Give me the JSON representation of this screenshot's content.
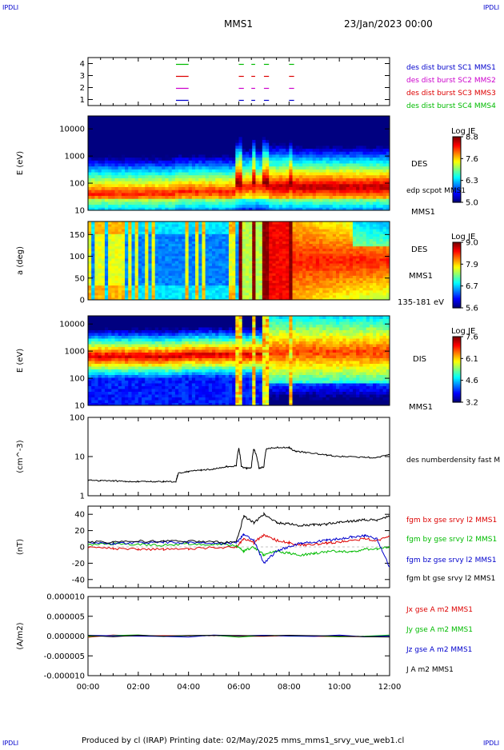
{
  "corner_label": "IPDLI",
  "header": {
    "title": "MMS1",
    "date": "23/Jan/2023 00:00"
  },
  "footer": "Produced by cl (IRAP)   Printing date: 02/May/2025   mms_mms1_srvy_vue_web1.cl",
  "colors": {
    "c1": "#0000cc",
    "c2": "#cc00cc",
    "c3": "#dd0000",
    "c4": "#00bb00",
    "black": "#000000"
  },
  "chart_data": [
    {
      "type": "scatter",
      "id": "availability",
      "ylim": [
        0.5,
        4.5
      ],
      "yticks": [
        "1",
        "2",
        "3",
        "4"
      ],
      "legend": [
        {
          "label": "des dist burst SC1 MMS1",
          "color": "#0000cc"
        },
        {
          "label": "des dist burst SC2 MMS2",
          "color": "#cc00cc"
        },
        {
          "label": "des dist burst SC3 MMS3",
          "color": "#dd0000"
        },
        {
          "label": "des dist burst SC4 MMS4",
          "color": "#00bb00"
        }
      ]
    },
    {
      "type": "heatmap",
      "id": "des-energy",
      "ylabel": "E (eV)",
      "yscale": "log",
      "ylim": [
        10,
        30000
      ],
      "yticks": [
        "10",
        "100",
        "1000",
        "10000"
      ],
      "right_labels": [
        "DES",
        "edp scpot MMS1",
        "MMS1"
      ],
      "colorbar": {
        "title": "Log JE",
        "ticks": [
          "8.8",
          "7.6",
          "6.3",
          "5.0"
        ],
        "range": [
          5.0,
          8.8
        ]
      }
    },
    {
      "type": "heatmap",
      "id": "des-pitch",
      "ylabel": "a (deg)",
      "ylim": [
        0,
        180
      ],
      "yticks": [
        "0",
        "50",
        "100",
        "150"
      ],
      "right_labels": [
        "DES",
        "MMS1",
        "135-181 eV"
      ],
      "colorbar": {
        "title": "Log JE",
        "ticks": [
          "9.0",
          "7.9",
          "6.7",
          "5.6"
        ],
        "range": [
          5.6,
          9.0
        ]
      }
    },
    {
      "type": "heatmap",
      "id": "dis-energy",
      "ylabel": "E (eV)",
      "yscale": "log",
      "ylim": [
        10,
        20000
      ],
      "yticks": [
        "10",
        "100",
        "1000",
        "10000"
      ],
      "right_labels": [
        "DIS",
        "MMS1"
      ],
      "colorbar": {
        "title": "Log JE",
        "ticks": [
          "7.6",
          "6.1",
          "4.6",
          "3.2"
        ],
        "range": [
          3.2,
          7.6
        ]
      }
    },
    {
      "type": "line",
      "id": "density",
      "ylabel": "(cm^-3)",
      "yscale": "log",
      "ylim": [
        1,
        100
      ],
      "yticks": [
        "1",
        "10",
        "100"
      ],
      "series": [
        {
          "name": "des numberdensity fast M",
          "color": "#000000",
          "x": [
            0,
            0.5,
            1,
            1.5,
            2,
            2.5,
            3,
            3.5,
            3.6,
            4,
            4.5,
            5,
            5.5,
            5.9,
            6.0,
            6.1,
            6.3,
            6.5,
            6.6,
            6.8,
            7.0,
            7.1,
            7.5,
            8.0,
            8.2,
            8.5,
            9,
            9.5,
            10,
            10.5,
            11,
            11.5,
            12
          ],
          "values": [
            2.5,
            2.4,
            2.4,
            2.3,
            2.3,
            2.3,
            2.3,
            2.3,
            3.8,
            4.2,
            4.5,
            4.8,
            5.5,
            5.8,
            16,
            5.5,
            5.0,
            5.2,
            16,
            5.0,
            5.5,
            16,
            17,
            17,
            14,
            13,
            12,
            11,
            10,
            10,
            9.5,
            9.5,
            11
          ]
        }
      ]
    },
    {
      "type": "line",
      "id": "magnetic-field",
      "ylabel": "(nT)",
      "ylim": [
        -50,
        50
      ],
      "yticks": [
        "-40",
        "-20",
        "0",
        "20",
        "40"
      ],
      "series": [
        {
          "name": "fgm bx gse srvy l2 MMS1",
          "color": "#dd0000",
          "x": [
            0,
            1,
            2,
            3,
            4,
            5,
            5.9,
            6.2,
            6.6,
            7.0,
            7.5,
            8,
            8.5,
            9,
            9.5,
            10,
            10.5,
            11,
            11.5,
            12
          ],
          "values": [
            0,
            -2,
            -3,
            -3,
            -2,
            -1,
            0,
            10,
            5,
            15,
            8,
            5,
            2,
            3,
            5,
            6,
            8,
            10,
            8,
            12
          ]
        },
        {
          "name": "fgm by gse srvy l2 MMS1",
          "color": "#00bb00",
          "x": [
            0,
            1,
            2,
            3,
            4,
            5,
            5.9,
            6.2,
            6.6,
            7.0,
            7.5,
            8,
            8.5,
            9,
            9.5,
            10,
            10.5,
            11,
            11.5,
            12
          ],
          "values": [
            3,
            4,
            3,
            2,
            4,
            3,
            2,
            -5,
            0,
            -10,
            -5,
            -8,
            -10,
            -8,
            -6,
            -5,
            -6,
            -3,
            -2,
            0
          ]
        },
        {
          "name": "fgm bz gse srvy l2 MMS1",
          "color": "#0000cc",
          "x": [
            0,
            1,
            2,
            3,
            4,
            5,
            5.9,
            6.2,
            6.6,
            7.0,
            7.5,
            8,
            8.5,
            9,
            9.5,
            10,
            10.5,
            11,
            11.5,
            12
          ],
          "values": [
            5,
            4,
            5,
            6,
            5,
            4,
            5,
            15,
            8,
            -20,
            -5,
            0,
            5,
            6,
            8,
            10,
            12,
            14,
            10,
            -25
          ]
        },
        {
          "name": "fgm bt gse srvy l2 MMS1",
          "color": "#000000",
          "x": [
            0,
            1,
            2,
            3,
            4,
            5,
            5.9,
            6.2,
            6.6,
            7.0,
            7.5,
            8,
            8.5,
            9,
            9.5,
            10,
            10.5,
            11,
            11.5,
            12
          ],
          "values": [
            6,
            6,
            7,
            7,
            7,
            6,
            6,
            38,
            30,
            40,
            30,
            28,
            26,
            27,
            28,
            30,
            32,
            33,
            33,
            38
          ]
        }
      ]
    },
    {
      "type": "line",
      "id": "current-density",
      "ylabel": "(A/m2)",
      "ylim": [
        -1e-05,
        1e-05
      ],
      "yticks": [
        "-0.000010",
        "-0.000005",
        "0.000000",
        "0.000005",
        "0.000010"
      ],
      "series": [
        {
          "name": "Jx gse A m2 MMS1",
          "color": "#dd0000",
          "x": [
            0,
            12
          ],
          "values": [
            0,
            0
          ]
        },
        {
          "name": "Jy gse A m2 MMS1",
          "color": "#00bb00",
          "x": [
            0,
            12
          ],
          "values": [
            0,
            0
          ]
        },
        {
          "name": "Jz gse A m2 MMS1",
          "color": "#0000cc",
          "x": [
            0,
            12
          ],
          "values": [
            0,
            0
          ]
        },
        {
          "name": "J A m2 MMS1",
          "color": "#000000",
          "x": [
            0,
            12
          ],
          "values": [
            0,
            0
          ]
        }
      ]
    }
  ],
  "xaxis": {
    "ticks": [
      "00:00",
      "02:00",
      "04:00",
      "06:00",
      "08:00",
      "10:00",
      "12:00"
    ],
    "range": [
      0,
      12
    ]
  }
}
